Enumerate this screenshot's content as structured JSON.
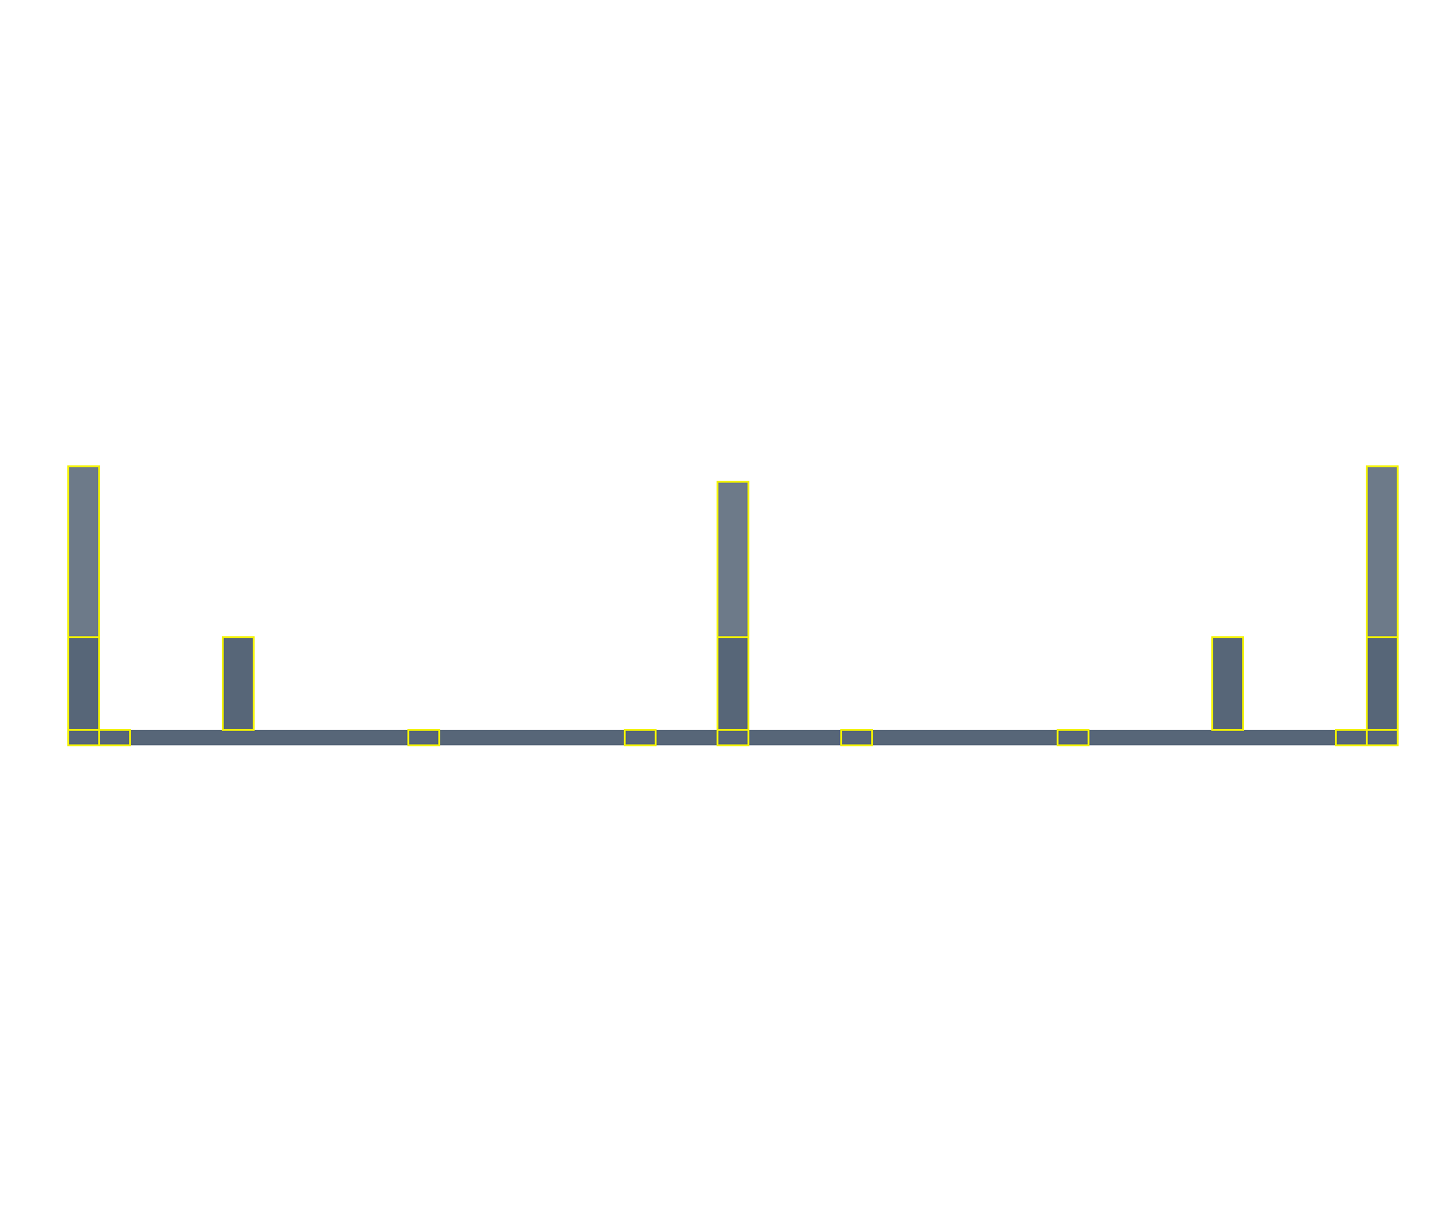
{
  "colors": {
    "background": "#ffffff",
    "base_fill": "#576678",
    "lower_block_fill": "#576678",
    "upper_block_fill": "#6d7a89",
    "outline": "#f2f200"
  },
  "structure": {
    "base_bar_width_units": 43,
    "columns": [
      {
        "name": "left-end-column",
        "position": 0,
        "lower_blocks": 1,
        "upper_blocks": 1,
        "upper_block_size": 1.0
      },
      {
        "name": "second-column",
        "position": 5,
        "lower_blocks": 1,
        "upper_blocks": 0
      },
      {
        "name": "center-column",
        "position": 21,
        "lower_blocks": 1,
        "upper_blocks": 1,
        "upper_block_size": 0.91
      },
      {
        "name": "sixth-column",
        "position": 37,
        "lower_blocks": 1,
        "upper_blocks": 0
      },
      {
        "name": "right-end-column",
        "position": 42,
        "lower_blocks": 1,
        "upper_blocks": 1,
        "upper_block_size": 1.0
      }
    ],
    "base_joints": [
      0,
      1,
      11,
      18,
      21,
      25,
      32,
      41,
      42
    ]
  }
}
